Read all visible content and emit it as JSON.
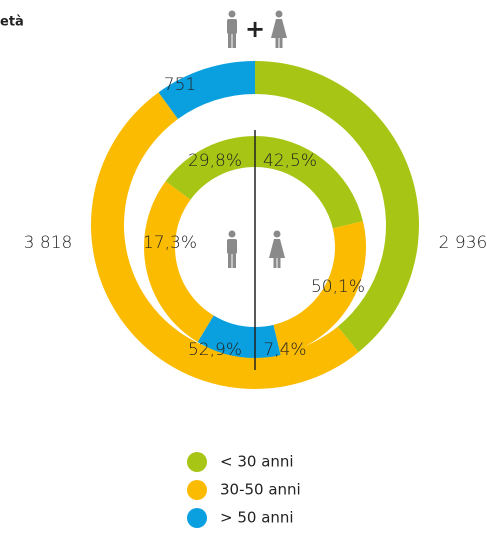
{
  "chart_data": {
    "type": "donut",
    "title": "età",
    "center_symbol": "+",
    "categories": [
      "< 30 anni",
      "30-50 anni",
      "> 50 anni"
    ],
    "colors": [
      "#a7c514",
      "#fbbb00",
      "#0aa0e0"
    ],
    "series": [
      {
        "values": [
          2936,
          3818,
          751
        ],
        "value_labels": [
          "2 936",
          "3 818",
          "751"
        ]
      },
      {
        "values": [
          42.5,
          50.1,
          7.4
        ],
        "value_labels": [
          "42,5%",
          "50,1%",
          "7,4%"
        ]
      },
      {
        "values": [
          29.8,
          52.9,
          17.3
        ],
        "value_labels": [
          "29,8%",
          "52,9%",
          "17,3%"
        ]
      }
    ]
  }
}
